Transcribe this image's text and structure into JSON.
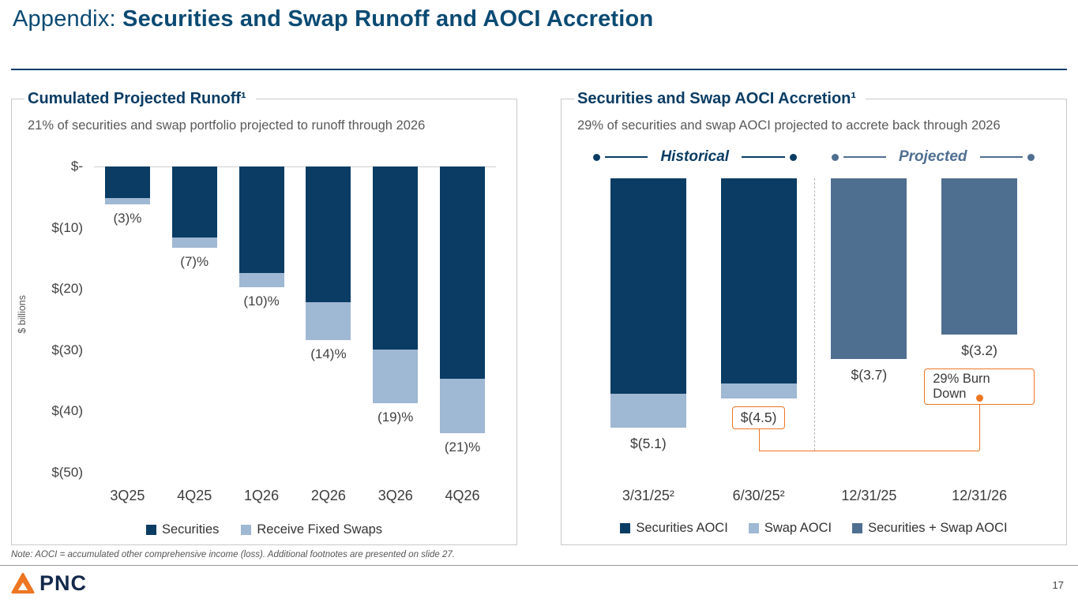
{
  "header": {
    "prefix": "Appendix: ",
    "title": "Securities and Swap Runoff and AOCI Accretion"
  },
  "colors": {
    "navy": "#0A3C64",
    "title_blue": "#0A4A73",
    "light_blue": "#9FB8D3",
    "steel_blue": "#4F6F91",
    "orange": "#EE7623",
    "gray_text": "#595959"
  },
  "chart_data": [
    {
      "type": "bar",
      "title": "Cumulated Projected Runoff¹",
      "subtitle": "21% of securities and swap portfolio projected to runoff through 2026",
      "ylabel": "$ billions",
      "ylim": [
        -50,
        0
      ],
      "grid": false,
      "legend_position": "bottom",
      "ytick_labels": [
        "$-",
        "$(10)",
        "$(20)",
        "$(30)",
        "$(40)",
        "$(50)"
      ],
      "ytick_values": [
        0,
        -10,
        -20,
        -30,
        -40,
        -50
      ],
      "categories": [
        "3Q25",
        "4Q25",
        "1Q26",
        "2Q26",
        "3Q26",
        "4Q26"
      ],
      "series": [
        {
          "name": "Securities",
          "color": "#0A3C64",
          "values": [
            -5.2,
            -11.6,
            -17.4,
            -22.1,
            -29.9,
            -34.7
          ]
        },
        {
          "name": "Receive Fixed Swaps",
          "color": "#9FB8D3",
          "values": [
            -1.0,
            -1.7,
            -2.3,
            -6.2,
            -8.7,
            -8.8
          ]
        }
      ],
      "bar_labels": [
        "(3)%",
        "(7)%",
        "(10)%",
        "(14)%",
        "(19)%",
        "(21)%"
      ]
    },
    {
      "type": "bar",
      "title": "Securities and Swap AOCI Accretion¹",
      "subtitle": "29% of securities and swap AOCI projected to accrete back through 2026",
      "legend_position": "bottom",
      "sections": [
        {
          "label": "Historical"
        },
        {
          "label": "Projected"
        }
      ],
      "categories": [
        "3/31/25²",
        "6/30/25²",
        "12/31/25",
        "12/31/26"
      ],
      "series": [
        {
          "name": "Securities AOCI",
          "color": "#0A3C64",
          "values": [
            -4.4,
            -4.2,
            null,
            null
          ]
        },
        {
          "name": "Swap AOCI",
          "color": "#9FB8D3",
          "values": [
            -0.7,
            -0.3,
            null,
            null
          ]
        },
        {
          "name": "Securities + Swap AOCI",
          "color": "#4F6F91",
          "values": [
            null,
            null,
            -3.7,
            -3.2
          ]
        }
      ],
      "bar_labels": [
        "$(5.1)",
        "$(4.5)",
        "$(3.7)",
        "$(3.2)"
      ],
      "boxed_label_index": 1,
      "annotation": "29% Burn Down"
    }
  ],
  "footnote": "Note: AOCI = accumulated other comprehensive income (loss). Additional footnotes are presented on slide 27.",
  "footer": {
    "brand": "PNC",
    "page": "17"
  }
}
